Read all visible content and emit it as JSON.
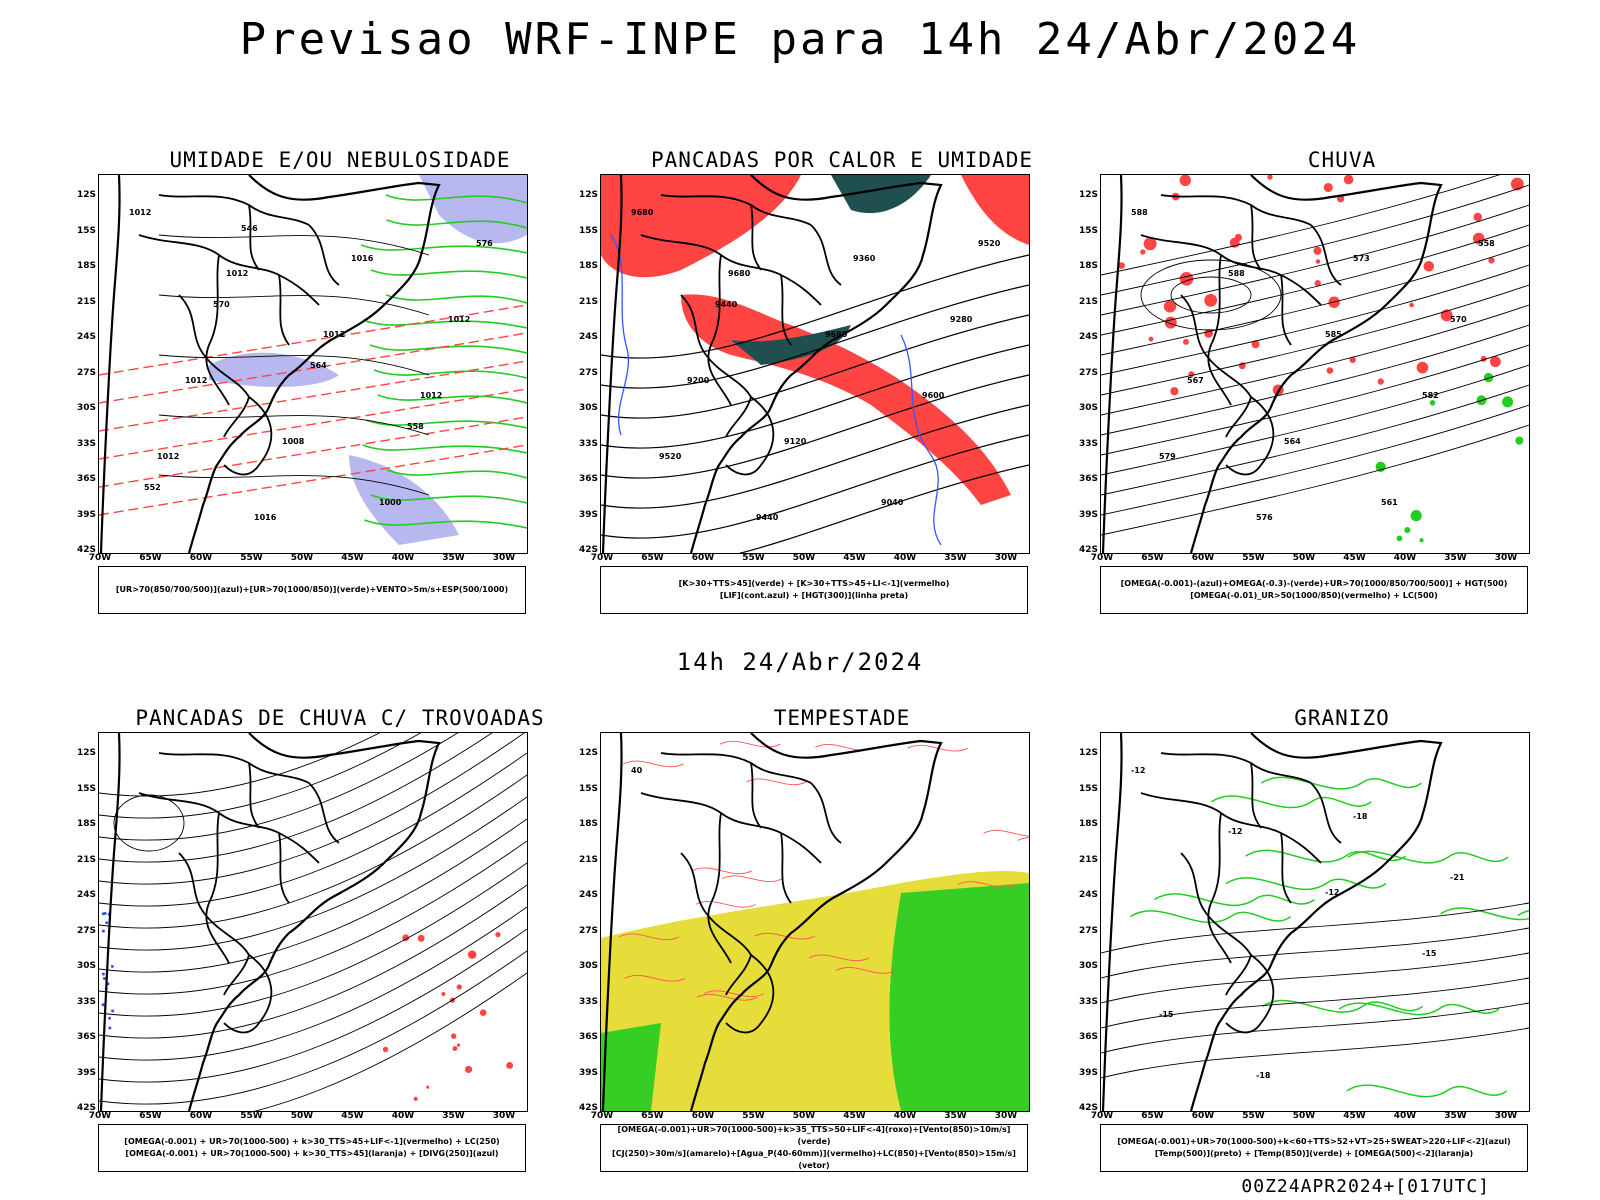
{
  "title": "Previsao WRF-INPE  para 14h 24/Abr/2024",
  "mid_time": "14h 24/Abr/2024",
  "footer": "00Z24APR2024+[017UTC]",
  "lat_labels": [
    "12S",
    "15S",
    "18S",
    "21S",
    "24S",
    "27S",
    "30S",
    "33S",
    "36S",
    "39S",
    "42S"
  ],
  "lon_labels": [
    "70W",
    "65W",
    "60W",
    "55W",
    "50W",
    "45W",
    "40W",
    "35W",
    "30W"
  ],
  "colors": {
    "blue_fill": "#b8b8f0",
    "green": "#22cc22",
    "red": "#ff4444",
    "dark_teal": "#1f4f4f",
    "yellow": "#e6dc3a",
    "blue_line": "#3355ff",
    "orange": "#ff8c1a"
  },
  "panels": [
    {
      "id": "umidade",
      "title": "UMIDADE E/OU NEBULOSIDADE",
      "legend": [
        "[UR>70(850/700/500)](azul)+[UR>70(1000/850)](verde)+VENTO>5m/s+ESP(500/1000)"
      ],
      "contour_labels": [
        "1012",
        "1012",
        "1012",
        "1012",
        "1012",
        "1016",
        "1016",
        "1012",
        "1012",
        "1008",
        "1000",
        "576",
        "570",
        "564",
        "558",
        "552",
        "546"
      ]
    },
    {
      "id": "pancadas_calor",
      "title": "PANCADAS POR CALOR E UMIDADE",
      "legend": [
        "[K>30+TTS>45](verde) + [K>30+TTS>45+LI<-1](vermelho)",
        "[LIF](cont.azul) + [HGT(300)](linha preta)"
      ],
      "contour_labels": [
        "9680",
        "9680",
        "9680",
        "9600",
        "9520",
        "9440",
        "9360",
        "9280",
        "9200",
        "9120",
        "9040",
        "9520",
        "9440"
      ]
    },
    {
      "id": "chuva",
      "title": "CHUVA",
      "legend": [
        "[OMEGA(-0.001)-(azul)+OMEGA(-0.3)-(verde)+UR>70(1000/850/700/500)] + HGT(500)",
        "[OMEGA(-0.01)_UR>50(1000/850)(vermelho) + LC(500)"
      ],
      "contour_labels": [
        "588",
        "588",
        "585",
        "582",
        "579",
        "576",
        "573",
        "570",
        "567",
        "564",
        "561",
        "558"
      ]
    },
    {
      "id": "trovoadas",
      "title": "PANCADAS DE CHUVA C/ TROVOADAS",
      "legend": [
        "[OMEGA(-0.001) + UR>70(1000-500) + k>30_TTS>45+LIF<-1](vermelho) + LC(250)",
        "[OMEGA(-0.001) + UR>70(1000-500) + k>30_TTS>45](laranja) + [DIVG(250)](azul)"
      ],
      "contour_labels": []
    },
    {
      "id": "tempestade",
      "title": "TEMPESTADE",
      "legend": [
        "[OMEGA(-0.001)+UR>70(1000-500)+k>35_TTS>50+LIF<-4](roxo)+[Vento(850)>10m/s](verde)",
        "[CJ(250)>30m/s](amarelo)+[Agua_P(40-60mm)](vermelho)+LC(850)+[Vento(850)>15m/s](vetor)"
      ],
      "contour_labels": [
        "40"
      ]
    },
    {
      "id": "granizo",
      "title": "GRANIZO",
      "legend": [
        "[OMEGA(-0.001)+UR>70(1000-500)+k<60+TTS>52+VT>25+SWEAT>220+LIF<-2](azul)",
        "[Temp(500)](preto) + [Temp(850)](verde) + [OMEGA(500)<-2](laranja)"
      ],
      "contour_labels": [
        "-12",
        "-12",
        "-12",
        "-15",
        "-15",
        "-18",
        "-18",
        "-21"
      ]
    }
  ]
}
